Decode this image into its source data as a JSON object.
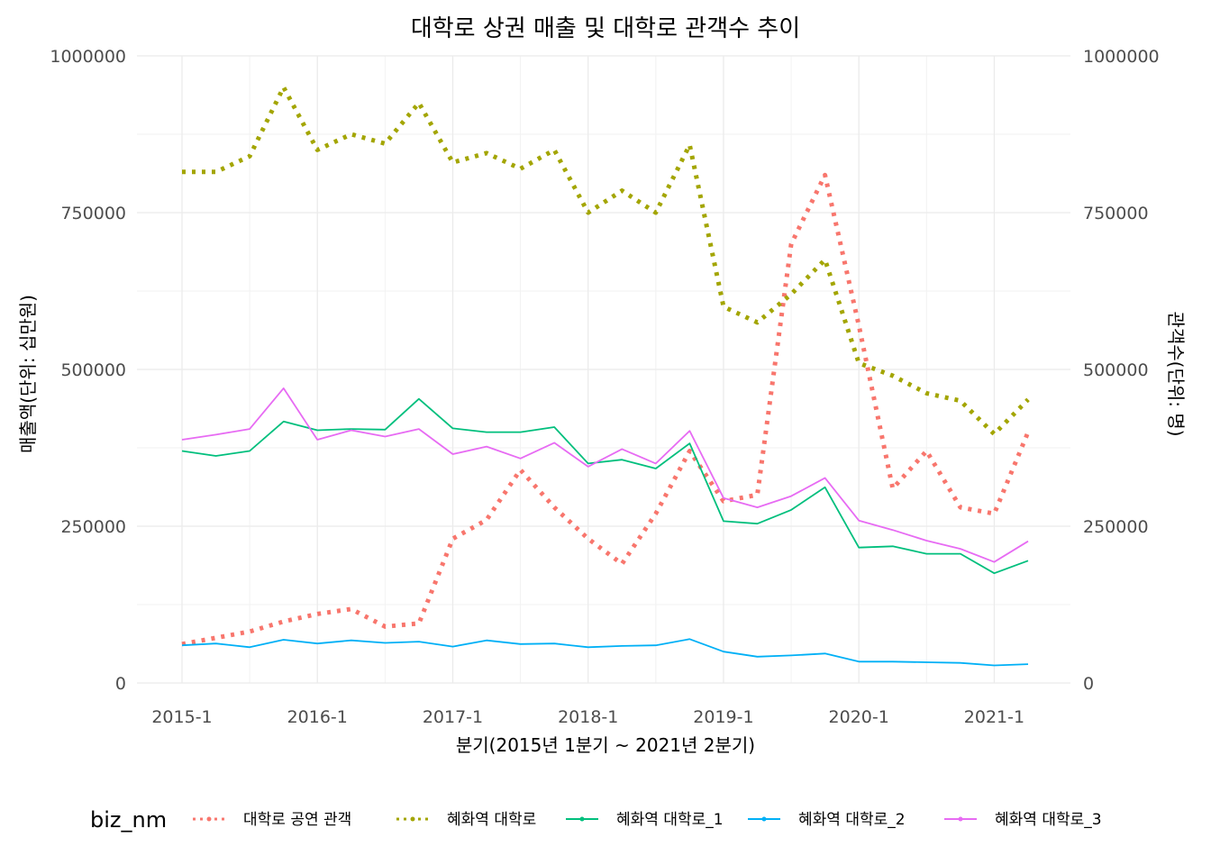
{
  "chart_data": {
    "type": "line",
    "title": "대학로 상권 매출 및 대학로 관객수 추이",
    "xlabel": "분기(2015년 1분기 ~ 2021년 2분기)",
    "ylabel_left": "매출액(단위: 십만원)",
    "ylabel_right": "관객수(단위: 명)",
    "ylim": [
      0,
      1000000
    ],
    "yticks": [
      0,
      250000,
      500000,
      750000,
      1000000
    ],
    "ytick_labels": [
      "0",
      "250000",
      "500000",
      "750000",
      "1000000"
    ],
    "xtick_labels": [
      "2015-1",
      "2016-1",
      "2017-1",
      "2018-1",
      "2019-1",
      "2020-1",
      "2021-1"
    ],
    "xtick_indices": [
      0,
      4,
      8,
      12,
      16,
      20,
      24
    ],
    "x": [
      "2015-1",
      "2015-2",
      "2015-3",
      "2015-4",
      "2016-1",
      "2016-2",
      "2016-3",
      "2016-4",
      "2017-1",
      "2017-2",
      "2017-3",
      "2017-4",
      "2018-1",
      "2018-2",
      "2018-3",
      "2018-4",
      "2019-1",
      "2019-2",
      "2019-3",
      "2019-4",
      "2020-1",
      "2020-2",
      "2020-3",
      "2020-4",
      "2021-1",
      "2021-2"
    ],
    "grid": true,
    "legend_title": "biz_nm",
    "legend_position": "bottom",
    "series": [
      {
        "name": "대학로 공연 관객",
        "color": "#F8766D",
        "dash": "dotted",
        "values": [
          62000,
          72000,
          82000,
          98000,
          110000,
          118000,
          90000,
          95000,
          230000,
          260000,
          340000,
          280000,
          230000,
          190000,
          270000,
          370000,
          290000,
          300000,
          700000,
          810000,
          570000,
          310000,
          370000,
          280000,
          270000,
          400000
        ]
      },
      {
        "name": "혜화역 대학로",
        "color": "#A3A500",
        "dash": "dotted",
        "values": [
          815000,
          815000,
          840000,
          950000,
          850000,
          875000,
          860000,
          925000,
          830000,
          845000,
          820000,
          850000,
          750000,
          785000,
          750000,
          858000,
          600000,
          575000,
          620000,
          675000,
          510000,
          490000,
          462000,
          450000,
          397000,
          452000
        ]
      },
      {
        "name": "혜화역 대학로_1",
        "color": "#00BF7D",
        "dash": "solid",
        "values": [
          370000,
          362000,
          370000,
          417000,
          403000,
          405000,
          404000,
          453000,
          406000,
          400000,
          400000,
          408000,
          350000,
          356000,
          342000,
          382000,
          258000,
          254000,
          276000,
          312000,
          216000,
          218000,
          206000,
          206000,
          175000,
          195000
        ]
      },
      {
        "name": "혜화역 대학로_2",
        "color": "#00B0F6",
        "dash": "solid",
        "values": [
          60000,
          63000,
          57000,
          69000,
          63000,
          68000,
          64000,
          66000,
          58000,
          68000,
          62000,
          63000,
          57000,
          59000,
          60000,
          70000,
          50000,
          42000,
          44000,
          47000,
          34000,
          34000,
          33000,
          32000,
          28000,
          30000
        ]
      },
      {
        "name": "혜화역 대학로_3",
        "color": "#E76BF3",
        "dash": "solid",
        "values": [
          388000,
          396000,
          405000,
          470000,
          388000,
          403000,
          393000,
          405000,
          365000,
          377000,
          358000,
          383000,
          345000,
          373000,
          350000,
          402000,
          295000,
          280000,
          298000,
          327000,
          259000,
          244000,
          227000,
          214000,
          193000,
          226000
        ]
      }
    ]
  }
}
